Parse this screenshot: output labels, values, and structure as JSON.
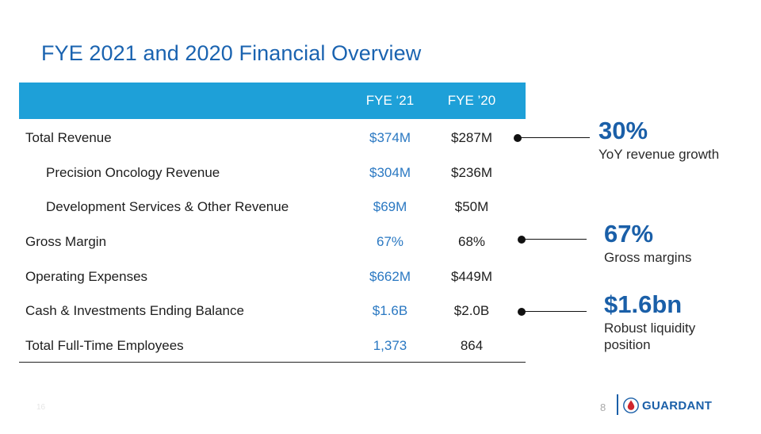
{
  "slide": {
    "title": "FYE 2021 and 2020 Financial Overview",
    "page_number": "8",
    "footer_left": "16"
  },
  "table": {
    "headers": [
      "",
      "FYE ‘21",
      "FYE ’20"
    ],
    "rows": [
      {
        "label": "Total Revenue",
        "fye21": "$374M",
        "fye20": "$287M"
      },
      {
        "label": "Precision Oncology Revenue",
        "fye21": "$304M",
        "fye20": "$236M"
      },
      {
        "label": "Development Services & Other Revenue",
        "fye21": "$69M",
        "fye20": "$50M"
      },
      {
        "label": "Gross Margin",
        "fye21": "67%",
        "fye20": "68%"
      },
      {
        "label": "Operating Expenses",
        "fye21": "$662M",
        "fye20": "$449M"
      },
      {
        "label": "Cash & Investments Ending Balance",
        "fye21": "$1.6B",
        "fye20": "$2.0B"
      },
      {
        "label": "Total Full-Time Employees",
        "fye21": "1,373",
        "fye20": "864"
      }
    ]
  },
  "highlights": [
    {
      "value": "30%",
      "caption": "YoY revenue growth"
    },
    {
      "value": "67%",
      "caption": "Gross margins"
    },
    {
      "value": "$1.6bn",
      "caption_line1": "Robust liquidity",
      "caption_line2": "position"
    }
  ],
  "logo": {
    "text": "GUARDANT",
    "icon": "droplet-icon"
  },
  "colors": {
    "title": "#1a63b0",
    "header_bg": "#1ea0d8",
    "accent_value": "#2a78c2",
    "stat": "#1a5fa8"
  }
}
